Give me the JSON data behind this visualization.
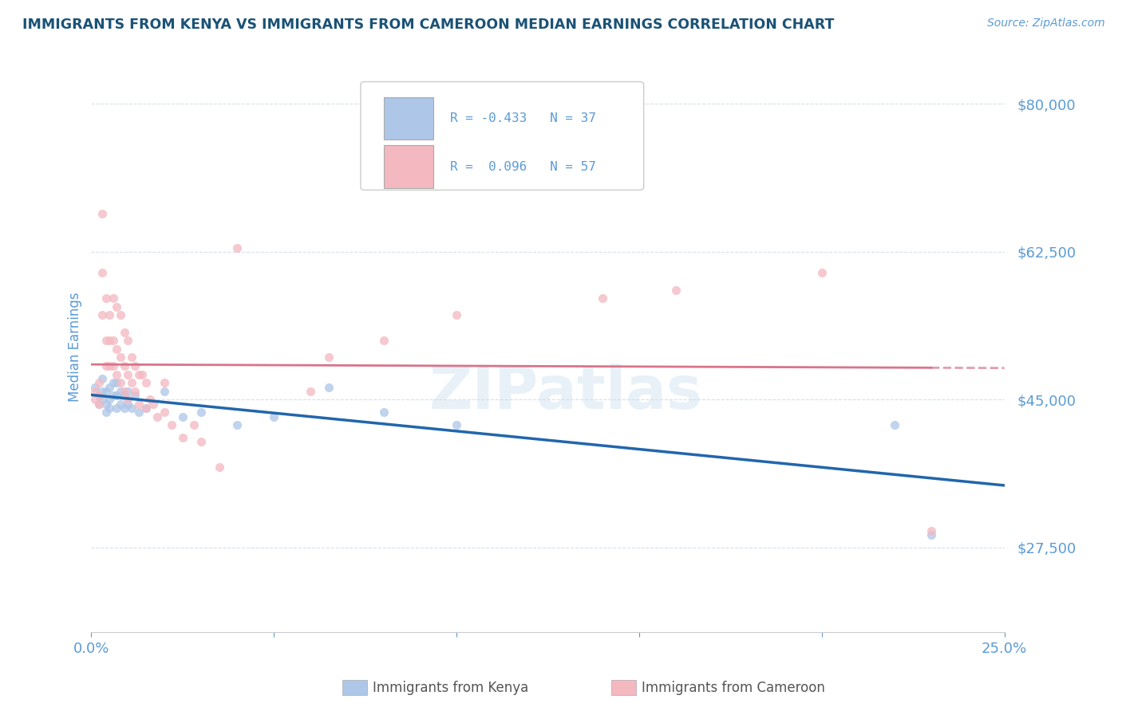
{
  "title": "IMMIGRANTS FROM KENYA VS IMMIGRANTS FROM CAMEROON MEDIAN EARNINGS CORRELATION CHART",
  "source_text": "Source: ZipAtlas.com",
  "ylabel": "Median Earnings",
  "xmin": 0.0,
  "xmax": 0.25,
  "ymin": 17500,
  "ymax": 85000,
  "yticks": [
    27500,
    45000,
    62500,
    80000
  ],
  "ytick_labels": [
    "$27,500",
    "$45,000",
    "$62,500",
    "$80,000"
  ],
  "xticks": [
    0.0,
    0.05,
    0.1,
    0.15,
    0.2,
    0.25
  ],
  "xtick_labels": [
    "0.0%",
    "",
    "",
    "",
    "",
    "25.0%"
  ],
  "title_color": "#1a5276",
  "axis_color": "#5b9bd5",
  "kenya_color": "#aec6e8",
  "cameroon_color": "#f4b8c1",
  "kenya_line_color": "#2166ac",
  "cameroon_line_color": "#d9748a",
  "kenya_scatter": [
    [
      0.001,
      46500
    ],
    [
      0.002,
      45500
    ],
    [
      0.002,
      44500
    ],
    [
      0.003,
      47500
    ],
    [
      0.003,
      46000
    ],
    [
      0.003,
      45000
    ],
    [
      0.004,
      46000
    ],
    [
      0.004,
      44500
    ],
    [
      0.004,
      43500
    ],
    [
      0.005,
      46500
    ],
    [
      0.005,
      45000
    ],
    [
      0.005,
      44000
    ],
    [
      0.006,
      47000
    ],
    [
      0.006,
      45500
    ],
    [
      0.007,
      47000
    ],
    [
      0.007,
      45500
    ],
    [
      0.007,
      44000
    ],
    [
      0.008,
      46000
    ],
    [
      0.008,
      44500
    ],
    [
      0.009,
      45500
    ],
    [
      0.009,
      44000
    ],
    [
      0.01,
      46000
    ],
    [
      0.01,
      44500
    ],
    [
      0.011,
      44000
    ],
    [
      0.012,
      45500
    ],
    [
      0.013,
      43500
    ],
    [
      0.015,
      44000
    ],
    [
      0.02,
      46000
    ],
    [
      0.025,
      43000
    ],
    [
      0.03,
      43500
    ],
    [
      0.04,
      42000
    ],
    [
      0.05,
      43000
    ],
    [
      0.065,
      46500
    ],
    [
      0.08,
      43500
    ],
    [
      0.1,
      42000
    ],
    [
      0.22,
      42000
    ],
    [
      0.23,
      29000
    ]
  ],
  "cameroon_scatter": [
    [
      0.001,
      46000
    ],
    [
      0.001,
      45000
    ],
    [
      0.002,
      47000
    ],
    [
      0.002,
      45500
    ],
    [
      0.002,
      44500
    ],
    [
      0.003,
      67000
    ],
    [
      0.003,
      60000
    ],
    [
      0.003,
      55000
    ],
    [
      0.004,
      57000
    ],
    [
      0.004,
      52000
    ],
    [
      0.004,
      49000
    ],
    [
      0.005,
      55000
    ],
    [
      0.005,
      52000
    ],
    [
      0.005,
      49000
    ],
    [
      0.006,
      57000
    ],
    [
      0.006,
      52000
    ],
    [
      0.006,
      49000
    ],
    [
      0.007,
      56000
    ],
    [
      0.007,
      51000
    ],
    [
      0.007,
      48000
    ],
    [
      0.008,
      55000
    ],
    [
      0.008,
      50000
    ],
    [
      0.008,
      47000
    ],
    [
      0.009,
      53000
    ],
    [
      0.009,
      49000
    ],
    [
      0.009,
      46000
    ],
    [
      0.01,
      52000
    ],
    [
      0.01,
      48000
    ],
    [
      0.01,
      45000
    ],
    [
      0.011,
      50000
    ],
    [
      0.011,
      47000
    ],
    [
      0.012,
      49000
    ],
    [
      0.012,
      46000
    ],
    [
      0.013,
      48000
    ],
    [
      0.013,
      44500
    ],
    [
      0.014,
      48000
    ],
    [
      0.015,
      47000
    ],
    [
      0.015,
      44000
    ],
    [
      0.016,
      45000
    ],
    [
      0.017,
      44500
    ],
    [
      0.018,
      43000
    ],
    [
      0.02,
      47000
    ],
    [
      0.02,
      43500
    ],
    [
      0.022,
      42000
    ],
    [
      0.025,
      40500
    ],
    [
      0.028,
      42000
    ],
    [
      0.03,
      40000
    ],
    [
      0.035,
      37000
    ],
    [
      0.04,
      63000
    ],
    [
      0.06,
      46000
    ],
    [
      0.065,
      50000
    ],
    [
      0.08,
      52000
    ],
    [
      0.1,
      55000
    ],
    [
      0.14,
      57000
    ],
    [
      0.16,
      58000
    ],
    [
      0.2,
      60000
    ],
    [
      0.23,
      29500
    ]
  ]
}
